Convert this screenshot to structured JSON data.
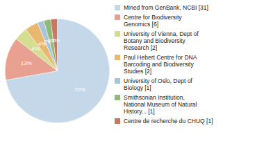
{
  "chart_data": {
    "type": "pie",
    "categories": [
      "Mined from GenBank, NCBI [31]",
      "Centre for Biodiversity\nGenomics [6]",
      "University of Vienna, Dept of\nBotany and Biodiversity\nResearch [2]",
      "Paul Hebert Centre for DNA\nBarcoding and Biodiversity\nStudies [2]",
      "University of Oslo, Dept of\nBiology [1]",
      "Smithsonian Institution,\nNational Museum of Natural\nHistory... [1]",
      "Centre de recherche du CHUQ [1]"
    ],
    "values": [
      70,
      13,
      4,
      4,
      2,
      2,
      2
    ],
    "value_labels": [
      "70%",
      "13%",
      "4%",
      "4%",
      "2%",
      "2%",
      "2%"
    ],
    "colors": [
      "#c5d8ea",
      "#e8a090",
      "#d4dd90",
      "#e8b870",
      "#a8c4d8",
      "#90b878",
      "#c87860"
    ],
    "data_labels": true,
    "legend": "right"
  }
}
